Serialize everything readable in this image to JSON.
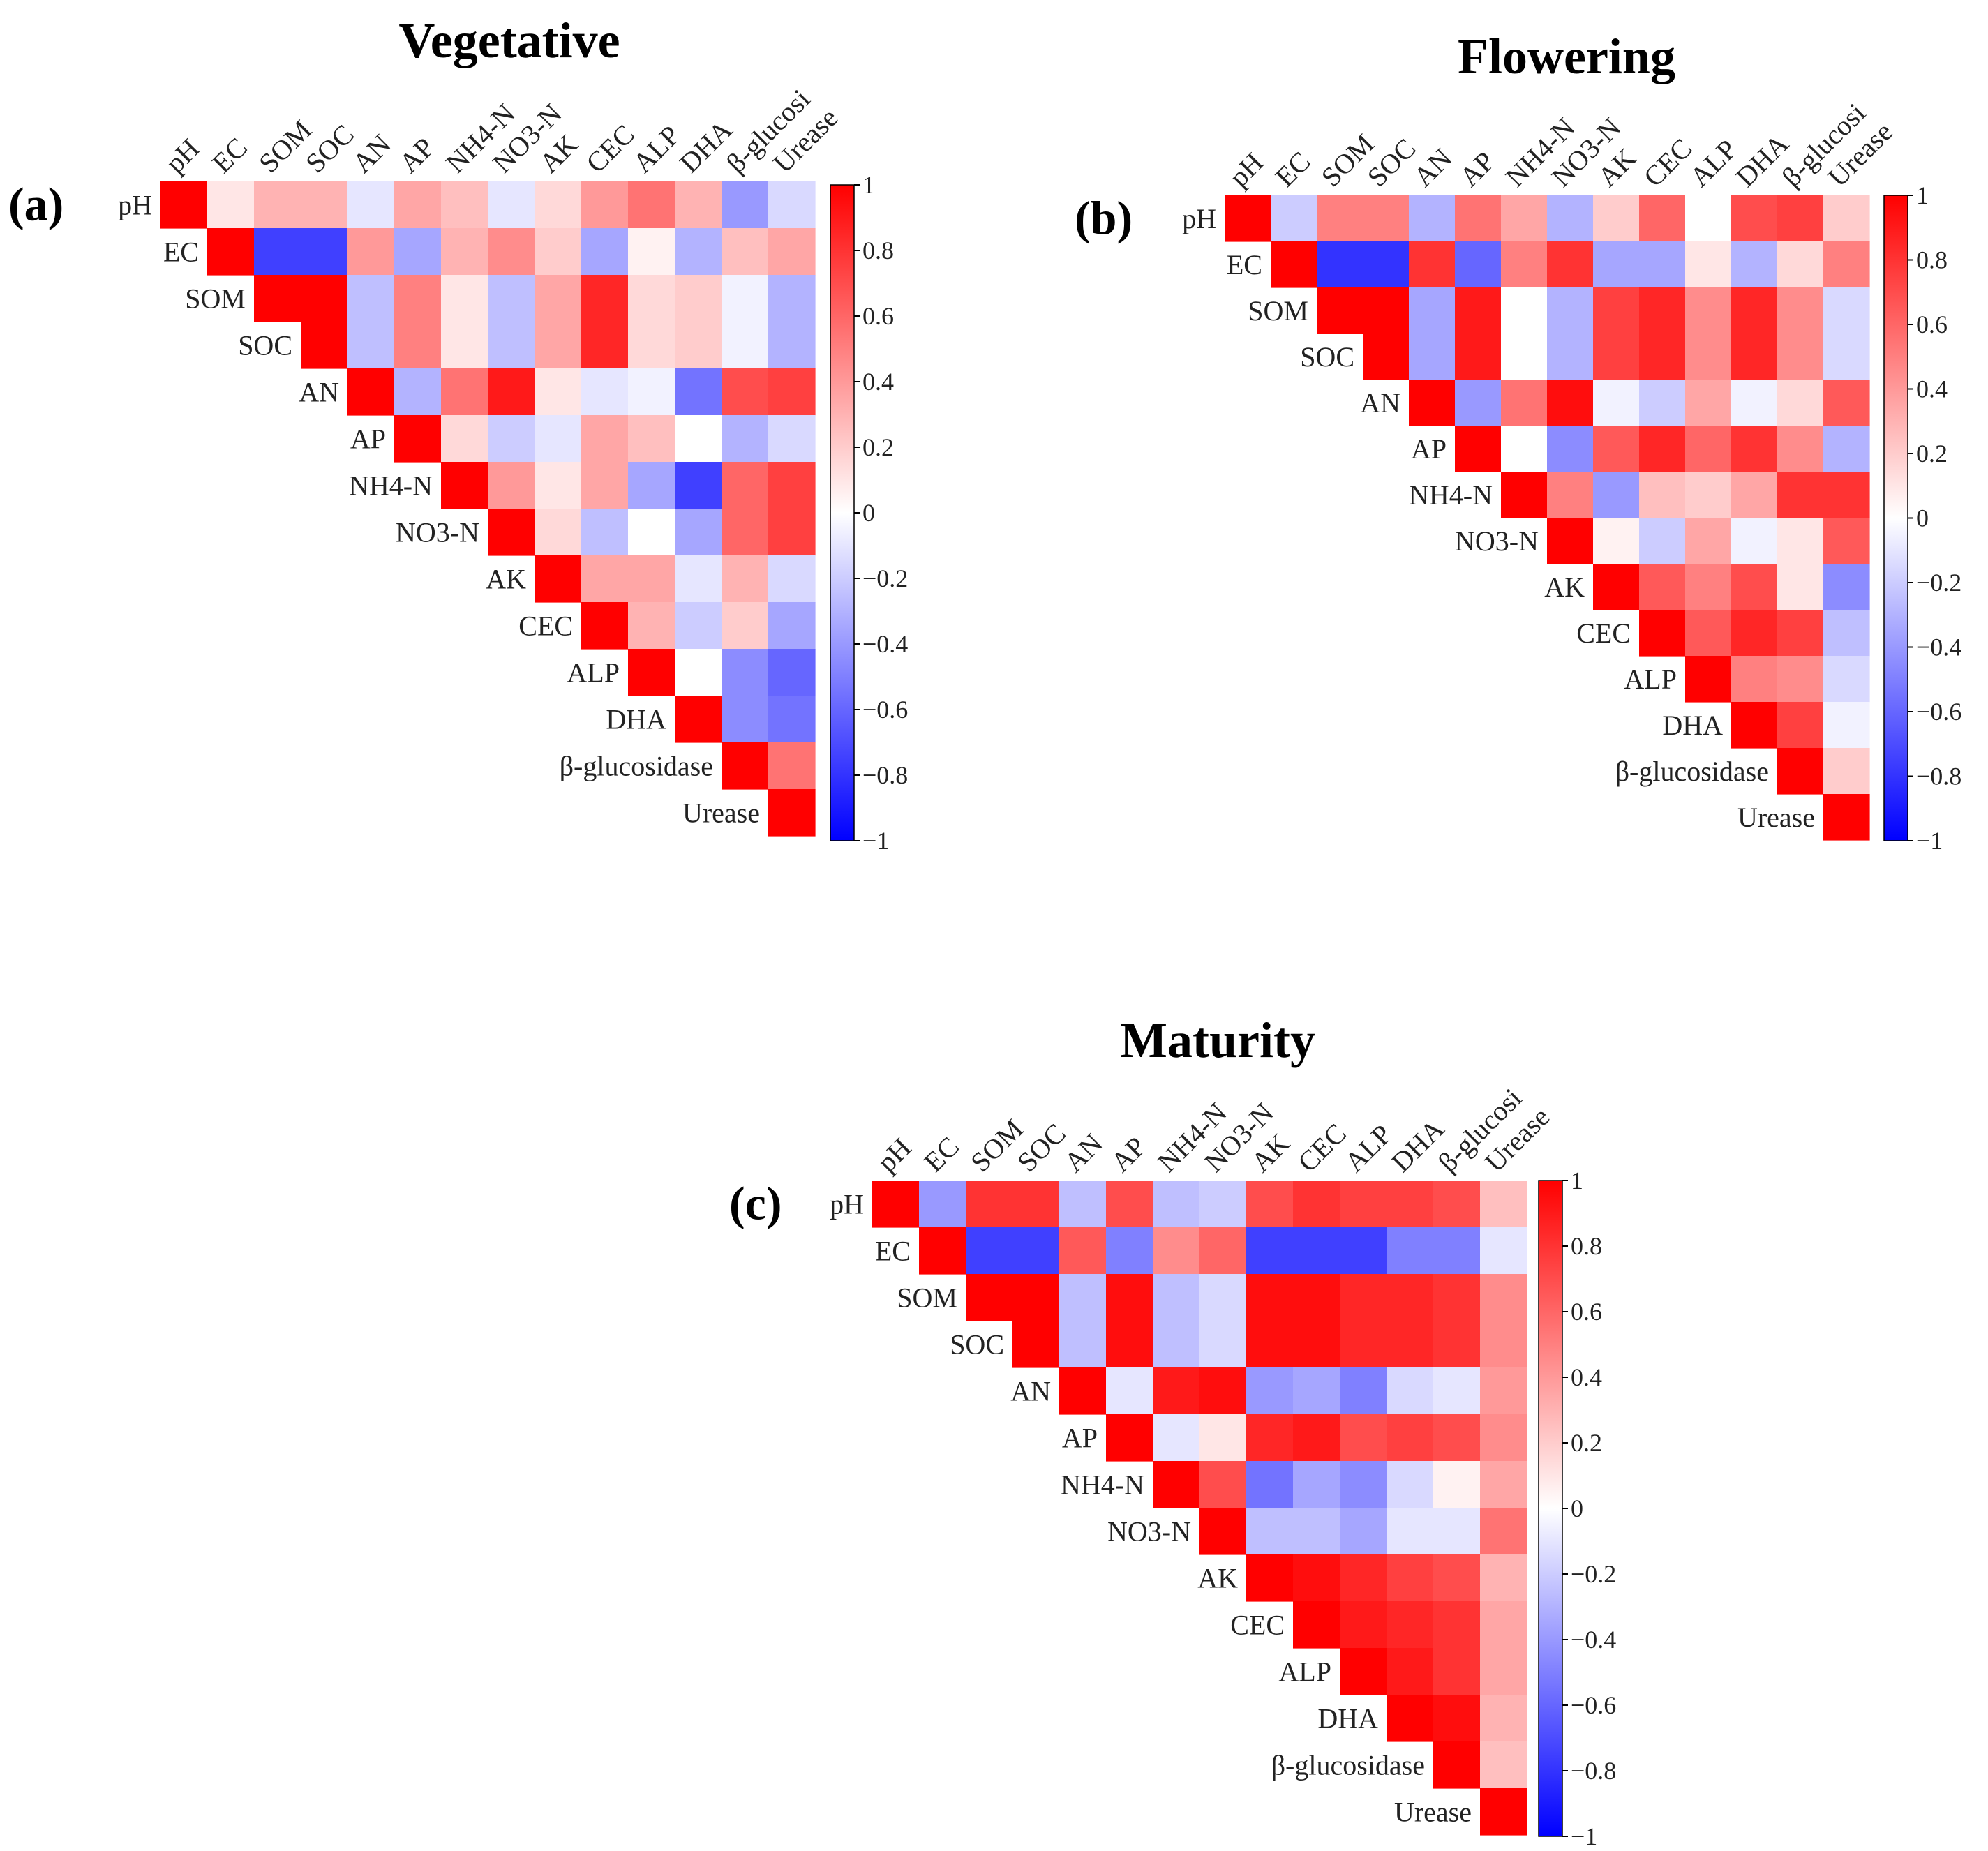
{
  "chart_data": [
    {
      "type": "heatmap",
      "panel": "(a)",
      "title": "Vegetative",
      "variables": [
        "pH",
        "EC",
        "SOM",
        "SOC",
        "AN",
        "AP",
        "NH4-N",
        "NO3-N",
        "AK",
        "CEC",
        "ALP",
        "DHA",
        "β-glucosidase",
        "Urease"
      ],
      "column_labels": [
        "pH",
        "EC",
        "SOM",
        "SOC",
        "AN",
        "AP",
        "NH4-N",
        "NO3-N",
        "AK",
        "CEC",
        "ALP",
        "DHA",
        "β-glucosi",
        "Urease"
      ],
      "row_labels": [
        "pH",
        "EC",
        "SOM",
        "SOC",
        "AN",
        "AP",
        "NH4-N",
        "NO3-N",
        "AK",
        "CEC",
        "ALP",
        "DHA",
        "β-glucosidase",
        "Urease"
      ],
      "matrix": [
        [
          1,
          0.1,
          0.3,
          0.3,
          -0.1,
          0.35,
          0.25,
          -0.1,
          0.15,
          0.4,
          0.55,
          0.3,
          -0.4,
          -0.15
        ],
        [
          null,
          1,
          -0.75,
          -0.75,
          0.4,
          -0.35,
          0.3,
          0.45,
          0.2,
          -0.35,
          0.05,
          -0.3,
          0.25,
          0.35
        ],
        [
          null,
          null,
          1,
          1,
          -0.25,
          0.5,
          0.1,
          -0.25,
          0.35,
          0.85,
          0.15,
          0.2,
          -0.05,
          -0.3
        ],
        [
          null,
          null,
          null,
          1,
          -0.25,
          0.5,
          0.1,
          -0.25,
          0.35,
          0.85,
          0.15,
          0.2,
          -0.05,
          -0.3
        ],
        [
          null,
          null,
          null,
          null,
          1,
          -0.3,
          0.55,
          0.9,
          0.1,
          -0.1,
          -0.05,
          -0.55,
          0.7,
          0.75
        ],
        [
          null,
          null,
          null,
          null,
          null,
          1,
          0.15,
          -0.2,
          -0.1,
          0.35,
          0.25,
          0.0,
          -0.3,
          -0.15
        ],
        [
          null,
          null,
          null,
          null,
          null,
          null,
          1,
          0.4,
          0.1,
          0.35,
          -0.35,
          -0.75,
          0.6,
          0.75
        ],
        [
          null,
          null,
          null,
          null,
          null,
          null,
          null,
          1,
          0.15,
          -0.25,
          0.0,
          -0.35,
          0.6,
          0.75
        ],
        [
          null,
          null,
          null,
          null,
          null,
          null,
          null,
          null,
          1,
          0.35,
          0.35,
          -0.1,
          0.3,
          -0.15
        ],
        [
          null,
          null,
          null,
          null,
          null,
          null,
          null,
          null,
          null,
          1,
          0.3,
          -0.2,
          0.2,
          -0.35
        ],
        [
          null,
          null,
          null,
          null,
          null,
          null,
          null,
          null,
          null,
          null,
          1,
          0.0,
          -0.45,
          -0.6
        ],
        [
          null,
          null,
          null,
          null,
          null,
          null,
          null,
          null,
          null,
          null,
          null,
          1,
          -0.45,
          -0.55
        ],
        [
          null,
          null,
          null,
          null,
          null,
          null,
          null,
          null,
          null,
          null,
          null,
          null,
          1,
          0.55
        ],
        [
          null,
          null,
          null,
          null,
          null,
          null,
          null,
          null,
          null,
          null,
          null,
          null,
          null,
          1
        ]
      ],
      "colorbar": {
        "range": [
          -1,
          1
        ],
        "ticks": [
          1,
          0.8,
          0.6,
          0.4,
          0.2,
          0,
          -0.2,
          -0.4,
          -0.6,
          -0.8,
          -1
        ],
        "tick_labels": [
          "1",
          "0.8",
          "0.6",
          "0.4",
          "0.2",
          "0",
          "−0.2",
          "−0.4",
          "−0.6",
          "−0.8",
          "−1"
        ],
        "colors": {
          "negative": "#0000ff",
          "zero": "#ffffff",
          "positive": "#ff0000"
        }
      }
    },
    {
      "type": "heatmap",
      "panel": "(b)",
      "title": "Flowering",
      "variables": [
        "pH",
        "EC",
        "SOM",
        "SOC",
        "AN",
        "AP",
        "NH4-N",
        "NO3-N",
        "AK",
        "CEC",
        "ALP",
        "DHA",
        "β-glucosidase",
        "Urease"
      ],
      "column_labels": [
        "pH",
        "EC",
        "SOM",
        "SOC",
        "AN",
        "AP",
        "NH4-N",
        "NO3-N",
        "AK",
        "CEC",
        "ALP",
        "DHA",
        "β-glucosi",
        "Urease"
      ],
      "row_labels": [
        "pH",
        "EC",
        "SOM",
        "SOC",
        "AN",
        "AP",
        "NH4-N",
        "NO3-N",
        "AK",
        "CEC",
        "ALP",
        "DHA",
        "β-glucosidase",
        "Urease"
      ],
      "matrix": [
        [
          1,
          -0.2,
          0.5,
          0.5,
          -0.3,
          0.55,
          0.35,
          -0.3,
          0.2,
          0.6,
          0.0,
          0.7,
          0.75,
          0.2
        ],
        [
          null,
          1,
          -0.8,
          -0.8,
          0.8,
          -0.6,
          0.5,
          0.8,
          -0.35,
          -0.35,
          0.1,
          -0.3,
          0.15,
          0.5
        ],
        [
          null,
          null,
          1,
          1,
          -0.35,
          0.9,
          0.0,
          -0.3,
          0.75,
          0.85,
          0.45,
          0.85,
          0.45,
          -0.15
        ],
        [
          null,
          null,
          null,
          1,
          -0.35,
          0.9,
          0.0,
          -0.3,
          0.75,
          0.85,
          0.45,
          0.85,
          0.45,
          -0.15
        ],
        [
          null,
          null,
          null,
          null,
          1,
          -0.4,
          0.55,
          0.95,
          -0.05,
          -0.2,
          0.35,
          -0.05,
          0.15,
          0.65
        ],
        [
          null,
          null,
          null,
          null,
          null,
          1,
          0.0,
          -0.45,
          0.65,
          0.85,
          0.6,
          0.8,
          0.45,
          -0.3
        ],
        [
          null,
          null,
          null,
          null,
          null,
          null,
          1,
          0.5,
          -0.4,
          0.25,
          0.2,
          0.35,
          0.8,
          0.8
        ],
        [
          null,
          null,
          null,
          null,
          null,
          null,
          null,
          1,
          0.05,
          -0.2,
          0.35,
          -0.05,
          0.1,
          0.65
        ],
        [
          null,
          null,
          null,
          null,
          null,
          null,
          null,
          null,
          1,
          0.65,
          0.5,
          0.7,
          0.1,
          -0.45
        ],
        [
          null,
          null,
          null,
          null,
          null,
          null,
          null,
          null,
          null,
          1,
          0.65,
          0.85,
          0.75,
          -0.25
        ],
        [
          null,
          null,
          null,
          null,
          null,
          null,
          null,
          null,
          null,
          null,
          1,
          0.5,
          0.45,
          -0.15
        ],
        [
          null,
          null,
          null,
          null,
          null,
          null,
          null,
          null,
          null,
          null,
          null,
          1,
          0.75,
          -0.05
        ],
        [
          null,
          null,
          null,
          null,
          null,
          null,
          null,
          null,
          null,
          null,
          null,
          null,
          1,
          0.2
        ],
        [
          null,
          null,
          null,
          null,
          null,
          null,
          null,
          null,
          null,
          null,
          null,
          null,
          null,
          1
        ]
      ],
      "colorbar": {
        "range": [
          -1,
          1
        ],
        "ticks": [
          1,
          0.8,
          0.6,
          0.4,
          0.2,
          0,
          -0.2,
          -0.4,
          -0.6,
          -0.8,
          -1
        ],
        "tick_labels": [
          "1",
          "0.8",
          "0.6",
          "0.4",
          "0.2",
          "0",
          "−0.2",
          "−0.4",
          "−0.6",
          "−0.8",
          "−1"
        ],
        "colors": {
          "negative": "#0000ff",
          "zero": "#ffffff",
          "positive": "#ff0000"
        }
      }
    },
    {
      "type": "heatmap",
      "panel": "(c)",
      "title": "Maturity",
      "variables": [
        "pH",
        "EC",
        "SOM",
        "SOC",
        "AN",
        "AP",
        "NH4-N",
        "NO3-N",
        "AK",
        "CEC",
        "ALP",
        "DHA",
        "β-glucosidase",
        "Urease"
      ],
      "column_labels": [
        "pH",
        "EC",
        "SOM",
        "SOC",
        "AN",
        "AP",
        "NH4-N",
        "NO3-N",
        "AK",
        "CEC",
        "ALP",
        "DHA",
        "β-glucosi",
        "Urease"
      ],
      "row_labels": [
        "pH",
        "EC",
        "SOM",
        "SOC",
        "AN",
        "AP",
        "NH4-N",
        "NO3-N",
        "AK",
        "CEC",
        "ALP",
        "DHA",
        "β-glucosidase",
        "Urease"
      ],
      "matrix": [
        [
          1,
          -0.4,
          0.8,
          0.8,
          -0.25,
          0.7,
          -0.25,
          -0.2,
          0.7,
          0.8,
          0.75,
          0.75,
          0.7,
          0.25
        ],
        [
          null,
          1,
          -0.75,
          -0.75,
          0.65,
          -0.5,
          0.45,
          0.6,
          -0.75,
          -0.75,
          -0.75,
          -0.5,
          -0.5,
          -0.1
        ],
        [
          null,
          null,
          1,
          1,
          -0.25,
          0.95,
          -0.25,
          -0.15,
          0.95,
          0.95,
          0.85,
          0.85,
          0.8,
          0.45
        ],
        [
          null,
          null,
          null,
          1,
          -0.25,
          0.95,
          -0.25,
          -0.15,
          0.95,
          0.95,
          0.85,
          0.85,
          0.8,
          0.45
        ],
        [
          null,
          null,
          null,
          null,
          1,
          -0.1,
          0.9,
          0.95,
          -0.4,
          -0.35,
          -0.5,
          -0.15,
          -0.1,
          0.4
        ],
        [
          null,
          null,
          null,
          null,
          null,
          1,
          -0.1,
          0.1,
          0.85,
          0.9,
          0.7,
          0.75,
          0.7,
          0.45
        ],
        [
          null,
          null,
          null,
          null,
          null,
          null,
          1,
          0.7,
          -0.55,
          -0.35,
          -0.45,
          -0.15,
          0.05,
          0.35
        ],
        [
          null,
          null,
          null,
          null,
          null,
          null,
          null,
          1,
          -0.25,
          -0.25,
          -0.35,
          -0.1,
          -0.1,
          0.55
        ],
        [
          null,
          null,
          null,
          null,
          null,
          null,
          null,
          null,
          1,
          0.95,
          0.85,
          0.75,
          0.7,
          0.3
        ],
        [
          null,
          null,
          null,
          null,
          null,
          null,
          null,
          null,
          null,
          1,
          0.9,
          0.85,
          0.8,
          0.35
        ],
        [
          null,
          null,
          null,
          null,
          null,
          null,
          null,
          null,
          null,
          null,
          1,
          0.9,
          0.8,
          0.35
        ],
        [
          null,
          null,
          null,
          null,
          null,
          null,
          null,
          null,
          null,
          null,
          null,
          1,
          0.95,
          0.3
        ],
        [
          null,
          null,
          null,
          null,
          null,
          null,
          null,
          null,
          null,
          null,
          null,
          null,
          1,
          0.25
        ],
        [
          null,
          null,
          null,
          null,
          null,
          null,
          null,
          null,
          null,
          null,
          null,
          null,
          null,
          1
        ]
      ],
      "colorbar": {
        "range": [
          -1,
          1
        ],
        "ticks": [
          1,
          0.8,
          0.6,
          0.4,
          0.2,
          0,
          -0.2,
          -0.4,
          -0.6,
          -0.8,
          -1
        ],
        "tick_labels": [
          "1",
          "0.8",
          "0.6",
          "0.4",
          "0.2",
          "0",
          "−0.2",
          "−0.4",
          "−0.6",
          "−0.8",
          "−1"
        ],
        "colors": {
          "negative": "#0000ff",
          "zero": "#ffffff",
          "positive": "#ff0000"
        }
      }
    }
  ]
}
